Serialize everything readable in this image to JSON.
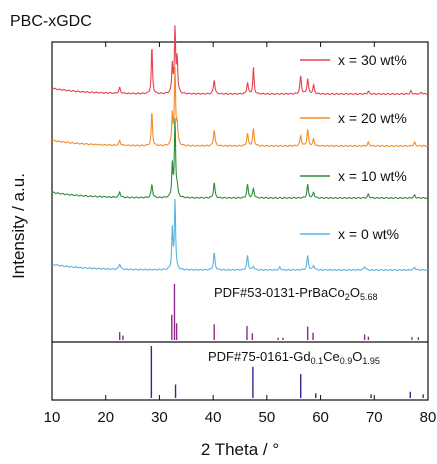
{
  "chart_data": {
    "type": "line",
    "title": "PBC-xGDC",
    "xlabel": "2 Theta / °",
    "ylabel": "Intensity / a.u.",
    "xlim": [
      10,
      80
    ],
    "x_ticks": [
      "10",
      "20",
      "30",
      "40",
      "50",
      "60",
      "70",
      "80"
    ],
    "series": [
      {
        "name": "x = 30 wt%",
        "color": "#e8404f",
        "baseline_offset": 3,
        "peaks": [
          [
            22.6,
            0.06
          ],
          [
            28.6,
            0.5
          ],
          [
            32.4,
            0.3
          ],
          [
            32.9,
            0.68
          ],
          [
            33.3,
            0.36
          ],
          [
            40.2,
            0.15
          ],
          [
            46.4,
            0.12
          ],
          [
            47.5,
            0.28
          ],
          [
            56.3,
            0.19
          ],
          [
            57.6,
            0.16
          ],
          [
            58.7,
            0.09
          ],
          [
            68.9,
            0.03
          ],
          [
            76.8,
            0.03
          ],
          [
            78.8,
            0.02
          ]
        ]
      },
      {
        "name": "x = 20 wt%",
        "color": "#f28c28",
        "baseline_offset": 2,
        "peaks": [
          [
            22.6,
            0.05
          ],
          [
            28.6,
            0.36
          ],
          [
            32.4,
            0.32
          ],
          [
            32.9,
            0.8
          ],
          [
            33.3,
            0.2
          ],
          [
            40.2,
            0.17
          ],
          [
            46.4,
            0.13
          ],
          [
            47.5,
            0.18
          ],
          [
            56.3,
            0.11
          ],
          [
            57.6,
            0.17
          ],
          [
            58.7,
            0.07
          ],
          [
            68.9,
            0.04
          ],
          [
            77.5,
            0.04
          ]
        ]
      },
      {
        "name": "x = 10 wt%",
        "color": "#2e8b3e",
        "baseline_offset": 1,
        "peaks": [
          [
            22.6,
            0.06
          ],
          [
            28.6,
            0.14
          ],
          [
            32.4,
            0.34
          ],
          [
            32.9,
            0.82
          ],
          [
            33.3,
            0.1
          ],
          [
            40.2,
            0.16
          ],
          [
            46.4,
            0.14
          ],
          [
            47.5,
            0.1
          ],
          [
            57.6,
            0.14
          ],
          [
            58.7,
            0.06
          ],
          [
            68.9,
            0.04
          ],
          [
            77.5,
            0.03
          ]
        ]
      },
      {
        "name": "x = 0 wt%",
        "color": "#5ab4e0",
        "baseline_offset": 0,
        "peaks": [
          [
            22.6,
            0.06
          ],
          [
            32.4,
            0.42
          ],
          [
            32.9,
            0.74
          ],
          [
            40.2,
            0.18
          ],
          [
            46.4,
            0.15
          ],
          [
            47.5,
            0.04
          ],
          [
            52.4,
            0.03
          ],
          [
            57.6,
            0.15
          ],
          [
            58.7,
            0.05
          ],
          [
            68.2,
            0.04
          ],
          [
            77.5,
            0.03
          ]
        ]
      }
    ],
    "reference_patterns": [
      {
        "name": "PDF#53-0131-PrBaCo",
        "sub1": "2",
        "mid": "O",
        "sub2": "5.68",
        "color": "#8e2b8a",
        "lines": [
          [
            22.6,
            0.14
          ],
          [
            23.2,
            0.08
          ],
          [
            32.3,
            0.45
          ],
          [
            32.8,
            1.0
          ],
          [
            33.2,
            0.3
          ],
          [
            40.2,
            0.28
          ],
          [
            46.3,
            0.25
          ],
          [
            47.3,
            0.12
          ],
          [
            52.1,
            0.04
          ],
          [
            53.0,
            0.04
          ],
          [
            57.6,
            0.24
          ],
          [
            58.6,
            0.13
          ],
          [
            68.2,
            0.1
          ],
          [
            68.9,
            0.06
          ],
          [
            77.0,
            0.05
          ],
          [
            78.2,
            0.05
          ]
        ]
      },
      {
        "name": "PDF#75-0161-Gd",
        "sub1": "0.1",
        "mid": "Ce",
        "sub2": "0.9",
        "tail": "O",
        "sub3": "1.95",
        "color": "#2a2b8c",
        "lines": [
          [
            28.5,
            1.0
          ],
          [
            33.0,
            0.26
          ],
          [
            47.4,
            0.6
          ],
          [
            56.3,
            0.46
          ],
          [
            59.1,
            0.09
          ],
          [
            69.4,
            0.07
          ],
          [
            76.7,
            0.12
          ],
          [
            79.1,
            0.07
          ]
        ]
      }
    ]
  }
}
